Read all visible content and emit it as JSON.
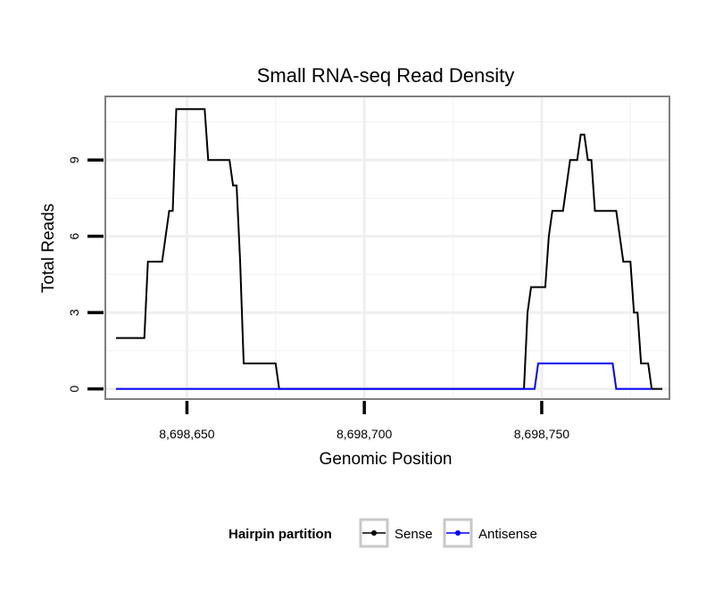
{
  "chart_data": {
    "type": "line",
    "title": "Small RNA-seq Read Density",
    "xlabel": "Genomic Position",
    "ylabel": "Total Reads",
    "xlim": [
      8698627,
      8698786
    ],
    "ylim": [
      -0.4,
      11.5
    ],
    "x_ticks": [
      8698650,
      8698700,
      8698750
    ],
    "x_tick_labels": [
      "8,698,650",
      "8,698,700",
      "8,698,750"
    ],
    "y_ticks": [
      0,
      3,
      6,
      9
    ],
    "y_tick_labels": [
      "0",
      "3",
      "6",
      "9"
    ],
    "grid": true,
    "legend": {
      "title": "Hairpin partition",
      "position": "bottom"
    },
    "series": [
      {
        "name": "Sense",
        "color": "#000000",
        "points": [
          [
            8698630,
            2
          ],
          [
            8698638,
            2
          ],
          [
            8698639,
            5
          ],
          [
            8698643,
            5
          ],
          [
            8698645,
            7
          ],
          [
            8698646,
            7
          ],
          [
            8698647,
            11
          ],
          [
            8698655,
            11
          ],
          [
            8698656,
            9
          ],
          [
            8698662,
            9
          ],
          [
            8698663,
            8
          ],
          [
            8698664,
            8
          ],
          [
            8698665,
            5
          ],
          [
            8698666,
            1
          ],
          [
            8698675,
            1
          ],
          [
            8698676,
            0
          ],
          [
            8698745,
            0
          ],
          [
            8698746,
            3
          ],
          [
            8698747,
            4
          ],
          [
            8698751,
            4
          ],
          [
            8698752,
            6
          ],
          [
            8698753,
            7
          ],
          [
            8698756,
            7
          ],
          [
            8698757,
            8
          ],
          [
            8698758,
            9
          ],
          [
            8698760,
            9
          ],
          [
            8698761,
            10
          ],
          [
            8698762,
            10
          ],
          [
            8698763,
            9
          ],
          [
            8698764,
            9
          ],
          [
            8698765,
            7
          ],
          [
            8698771,
            7
          ],
          [
            8698772,
            6
          ],
          [
            8698773,
            5
          ],
          [
            8698775,
            5
          ],
          [
            8698776,
            3
          ],
          [
            8698777,
            3
          ],
          [
            8698778,
            1
          ],
          [
            8698780,
            1
          ],
          [
            8698781,
            0
          ],
          [
            8698784,
            0
          ]
        ]
      },
      {
        "name": "Antisense",
        "color": "#0000ff",
        "points": [
          [
            8698630,
            0
          ],
          [
            8698748,
            0
          ],
          [
            8698749,
            1
          ],
          [
            8698770,
            1
          ],
          [
            8698771,
            0
          ],
          [
            8698781,
            0
          ]
        ]
      }
    ]
  }
}
